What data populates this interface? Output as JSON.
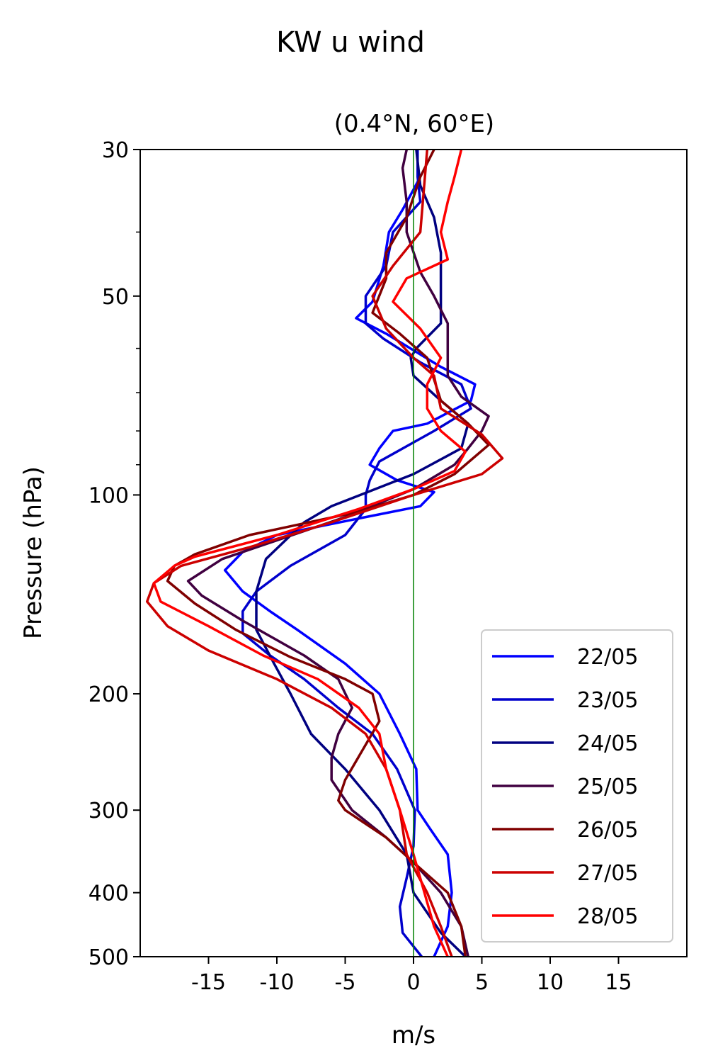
{
  "chart_data": {
    "type": "line",
    "title": "KW u wind",
    "subtitle": "(0.4°N, 60°E)",
    "xlabel": "m/s",
    "ylabel": "Pressure (hPa)",
    "xlim": [
      -20,
      20
    ],
    "ylim": [
      500,
      30
    ],
    "y_scale": "log",
    "x_ticks": [
      -15,
      -10,
      -5,
      0,
      5,
      10,
      15
    ],
    "y_ticks": [
      30,
      50,
      100,
      200,
      300,
      400,
      500
    ],
    "y_minor_ticks": [
      40,
      60,
      70,
      80,
      90
    ],
    "reference_line": {
      "x": 0,
      "color": "#008000"
    },
    "legend_position": "lower-right",
    "grid": false,
    "series": [
      {
        "name": "22/05",
        "color": "#0000ff",
        "x": [
          1.5,
          2.5,
          2.8,
          2.5,
          1.2,
          0.3,
          0.2,
          -1.0,
          -2.5,
          -5.0,
          -8.5,
          -10.5,
          -12.5,
          -13.8,
          -12.5,
          -10.0,
          -3.5,
          0.5,
          1.5,
          -1.2,
          -3.2,
          -2.5,
          -1.5,
          1.0,
          4.2,
          4.5,
          2.0,
          -2.0,
          -4.2,
          -3.0,
          -2.2,
          -1.8,
          -0.8,
          0.5
        ],
        "y": [
          500,
          450,
          400,
          350,
          320,
          300,
          260,
          230,
          200,
          180,
          160,
          150,
          140,
          130,
          122,
          115,
          108,
          104,
          99,
          95,
          90,
          85,
          80,
          78,
          72,
          68,
          64,
          57,
          54,
          51,
          45,
          40,
          37,
          33
        ]
      },
      {
        "name": "23/05",
        "color": "#0000cc",
        "x": [
          0.6,
          -0.8,
          -1.0,
          -0.5,
          0.0,
          0.1,
          -1.2,
          -3.0,
          -5.5,
          -8.0,
          -10.5,
          -12.5,
          -12.5,
          -11.5,
          -9.0,
          -5.0,
          -3.5,
          -3.5,
          -3.2,
          -2.5,
          1.5,
          4.2,
          3.5,
          0.5,
          -2.2,
          -3.5,
          -3.5,
          -2.0,
          -1.5,
          0.5,
          0.3,
          0.3
        ],
        "y": [
          500,
          460,
          420,
          380,
          340,
          300,
          260,
          230,
          210,
          190,
          175,
          162,
          150,
          140,
          128,
          115,
          105,
          100,
          95,
          89,
          80,
          74,
          68,
          63,
          58,
          55,
          50,
          45,
          40,
          36,
          33,
          30
        ]
      },
      {
        "name": "24/05",
        "color": "#000080",
        "x": [
          3.8,
          2.0,
          0.0,
          -0.5,
          -2.5,
          -5.0,
          -7.5,
          -9.0,
          -10.2,
          -11.5,
          -11.5,
          -10.8,
          -8.0,
          -6.0,
          0.0,
          3.5,
          4.0,
          2.0,
          0.0,
          -0.2,
          0.2,
          2.0,
          2.0,
          2.0,
          1.5,
          0.5,
          0.2
        ],
        "y": [
          500,
          460,
          400,
          350,
          300,
          260,
          230,
          200,
          180,
          160,
          140,
          125,
          110,
          104,
          93,
          85,
          78,
          72,
          66,
          62,
          60,
          55,
          50,
          43,
          38,
          34,
          30
        ]
      },
      {
        "name": "25/05",
        "color": "#400040",
        "x": [
          4.0,
          3.5,
          2.0,
          0.0,
          -2.0,
          -4.5,
          -6.0,
          -6.0,
          -5.5,
          -4.5,
          -5.5,
          -8.0,
          -12.5,
          -15.5,
          -16.5,
          -14.0,
          -5.0,
          0.0,
          3.0,
          4.0,
          5.0,
          5.5,
          3.5,
          2.5,
          2.5,
          1.5,
          0.5,
          -0.5,
          -0.5,
          -0.8,
          -0.5
        ],
        "y": [
          500,
          450,
          400,
          360,
          330,
          300,
          270,
          250,
          230,
          210,
          190,
          175,
          155,
          142,
          135,
          125,
          108,
          98,
          90,
          85,
          80,
          76,
          71,
          66,
          55,
          50,
          46,
          40,
          36,
          32,
          30
        ]
      },
      {
        "name": "26/05",
        "color": "#800000",
        "x": [
          3.8,
          3.5,
          2.5,
          0.0,
          -2.0,
          -5.0,
          -5.5,
          -5.0,
          -2.5,
          -3.0,
          -5.0,
          -9.0,
          -13.0,
          -16.0,
          -18.0,
          -17.5,
          -16.0,
          -12.0,
          -4.0,
          0.0,
          3.0,
          5.5,
          4.0,
          2.0,
          1.0,
          -1.0,
          -3.0,
          -2.0,
          -2.0,
          -0.5,
          0.5,
          1.5
        ],
        "y": [
          500,
          450,
          400,
          360,
          330,
          300,
          290,
          270,
          220,
          200,
          190,
          176,
          160,
          146,
          135,
          128,
          123,
          115,
          106,
          100,
          93,
          84,
          78,
          72,
          62,
          57,
          53,
          47,
          43,
          38,
          33,
          30
        ]
      },
      {
        "name": "27/05",
        "color": "#cc0000",
        "x": [
          2.8,
          2.0,
          1.0,
          -0.5,
          -1.0,
          -2.0,
          -3.5,
          -6.0,
          -10.0,
          -15.0,
          -18.0,
          -19.5,
          -19.0,
          -17.0,
          -12.0,
          -6.0,
          0.0,
          5.0,
          6.5,
          5.0,
          2.0,
          1.5,
          0.0,
          -2.0,
          -3.0,
          -1.5,
          0.5,
          1.0
        ],
        "y": [
          500,
          450,
          400,
          350,
          300,
          260,
          230,
          210,
          190,
          172,
          158,
          145,
          136,
          128,
          120,
          110,
          100,
          93,
          88,
          81,
          74,
          66,
          62,
          56,
          50,
          45,
          40,
          30
        ]
      },
      {
        "name": "28/05",
        "color": "#ff0000",
        "x": [
          2.5,
          1.5,
          0.8,
          0.0,
          -1.0,
          -2.0,
          -2.5,
          -4.0,
          -7.0,
          -11.0,
          -15.0,
          -18.5,
          -19.0,
          -17.5,
          -16.0,
          -10.0,
          -4.0,
          0.0,
          3.0,
          3.8,
          2.0,
          1.0,
          1.0,
          2.0,
          0.5,
          -1.5,
          -0.5,
          2.5,
          2.0,
          2.5,
          3.0,
          3.5
        ],
        "y": [
          500,
          450,
          400,
          350,
          300,
          260,
          230,
          210,
          190,
          175,
          158,
          145,
          136,
          128,
          124,
          115,
          105,
          98,
          92,
          86,
          80,
          74,
          68,
          62,
          56,
          51,
          47,
          44,
          40,
          36,
          33,
          30
        ]
      }
    ]
  }
}
